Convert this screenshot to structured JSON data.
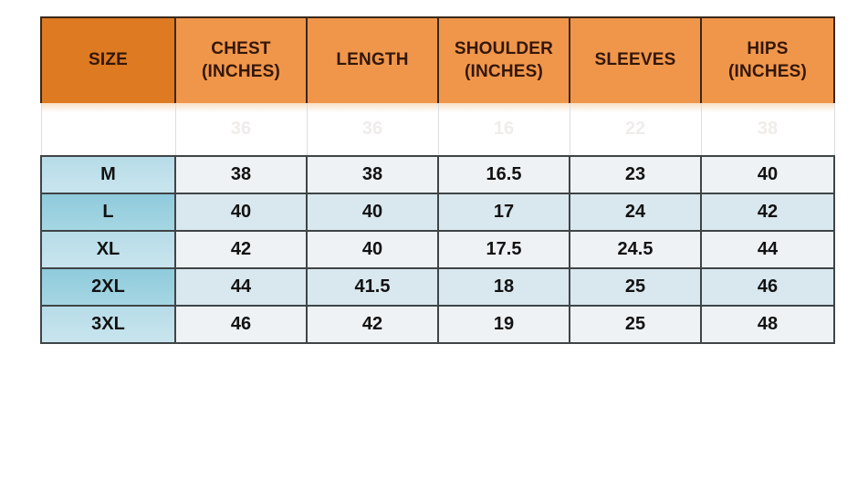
{
  "chart_data": {
    "type": "table",
    "columns": [
      "SIZE",
      "CHEST (INCHES)",
      "LENGTH",
      "SHOULDER (INCHES)",
      "SLEEVES",
      "HIPS (INCHES)"
    ],
    "faded_row": {
      "size": "",
      "values": [
        "36",
        "36",
        "16",
        "22",
        "38"
      ]
    },
    "rows": [
      {
        "size": "M",
        "values": [
          "38",
          "38",
          "16.5",
          "23",
          "40"
        ]
      },
      {
        "size": "L",
        "values": [
          "40",
          "40",
          "17",
          "24",
          "42"
        ]
      },
      {
        "size": "XL",
        "values": [
          "42",
          "40",
          "17.5",
          "24.5",
          "44"
        ]
      },
      {
        "size": "2XL",
        "values": [
          "44",
          "41.5",
          "18",
          "25",
          "46"
        ]
      },
      {
        "size": "3XL",
        "values": [
          "46",
          "42",
          "19",
          "25",
          "48"
        ]
      }
    ]
  },
  "colors": {
    "header_size_bg": "#dd7a22",
    "header_bg": "#f0964b",
    "header_text": "#331708",
    "size_col_light": "#c3e2ec",
    "size_col_dark": "#96cfdf",
    "row_light": "#eef2f5",
    "row_dark": "#d9e8ee",
    "border_dark": "#3f4447",
    "border_light": "#d9dee1",
    "data_text": "#121212"
  }
}
